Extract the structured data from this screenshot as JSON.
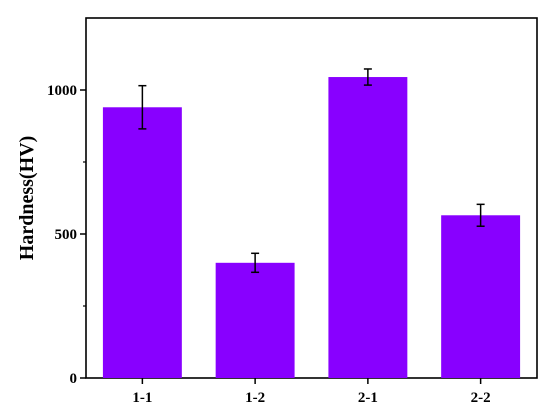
{
  "chart_data": {
    "type": "bar",
    "title": "",
    "xlabel": "",
    "ylabel": "Hardness(HV)",
    "categories": [
      "1-1",
      "1-2",
      "2-1",
      "2-2"
    ],
    "values": [
      940,
      400,
      1045,
      565
    ],
    "errors": [
      75,
      33,
      28,
      38
    ],
    "ylim": [
      0,
      1250
    ],
    "yticks": [
      0,
      500,
      1000
    ],
    "yticklabels": [
      "0",
      "500",
      "1000"
    ],
    "grid": false,
    "legend": "none",
    "bar_color": "#8800ff"
  }
}
